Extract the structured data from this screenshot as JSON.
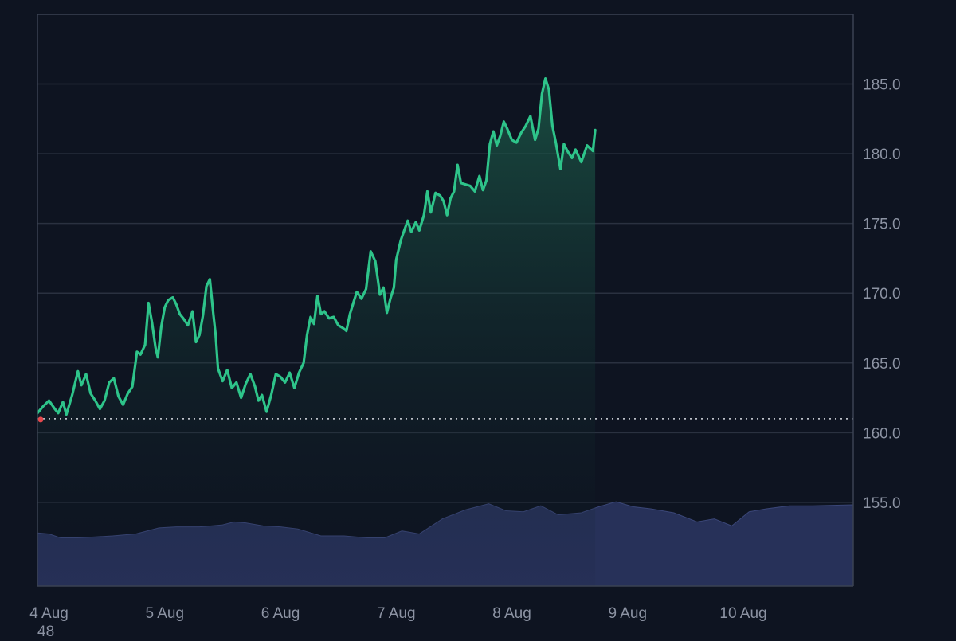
{
  "chart_data": {
    "type": "area",
    "title": "",
    "xlabel": "",
    "ylabel": "",
    "x_tick_labels": [
      "4 Aug",
      "5 Aug",
      "6 Aug",
      "7 Aug",
      "8 Aug",
      "9 Aug",
      "10 Aug"
    ],
    "y_tick_values": [
      155.0,
      160.0,
      165.0,
      170.0,
      175.0,
      180.0,
      185.0
    ],
    "y_tick_labels": [
      "155.0",
      "160.0",
      "165.0",
      "170.0",
      "175.0",
      "180.0",
      "185.0"
    ],
    "ylim": [
      149.0,
      190.0
    ],
    "x_range_days": [
      3.9,
      10.95
    ],
    "grid": true,
    "reference_line": 161.0,
    "bottom_left_label": "48",
    "series": [
      {
        "kind": "price",
        "color": "#2ec48a",
        "area_top_color": "#1f6b52",
        "area_bottom_color": "#0e1421",
        "points": [
          [
            3.9,
            161.4
          ],
          [
            3.95,
            161.9
          ],
          [
            4.0,
            162.3
          ],
          [
            4.05,
            161.7
          ],
          [
            4.08,
            161.4
          ],
          [
            4.12,
            162.2
          ],
          [
            4.15,
            161.3
          ],
          [
            4.2,
            162.7
          ],
          [
            4.25,
            164.4
          ],
          [
            4.28,
            163.4
          ],
          [
            4.32,
            164.2
          ],
          [
            4.36,
            162.8
          ],
          [
            4.4,
            162.3
          ],
          [
            4.44,
            161.7
          ],
          [
            4.48,
            162.3
          ],
          [
            4.52,
            163.6
          ],
          [
            4.56,
            163.9
          ],
          [
            4.6,
            162.6
          ],
          [
            4.64,
            162.0
          ],
          [
            4.68,
            162.8
          ],
          [
            4.72,
            163.3
          ],
          [
            4.76,
            165.8
          ],
          [
            4.79,
            165.6
          ],
          [
            4.83,
            166.3
          ],
          [
            4.86,
            169.3
          ],
          [
            4.89,
            167.9
          ],
          [
            4.92,
            166.1
          ],
          [
            4.94,
            165.4
          ],
          [
            4.97,
            167.6
          ],
          [
            5.0,
            169.0
          ],
          [
            5.03,
            169.5
          ],
          [
            5.07,
            169.7
          ],
          [
            5.1,
            169.2
          ],
          [
            5.13,
            168.5
          ],
          [
            5.16,
            168.2
          ],
          [
            5.2,
            167.7
          ],
          [
            5.24,
            168.7
          ],
          [
            5.27,
            166.5
          ],
          [
            5.3,
            167.0
          ],
          [
            5.33,
            168.4
          ],
          [
            5.36,
            170.5
          ],
          [
            5.39,
            171.0
          ],
          [
            5.42,
            168.5
          ],
          [
            5.44,
            167.0
          ],
          [
            5.46,
            164.6
          ],
          [
            5.5,
            163.7
          ],
          [
            5.54,
            164.5
          ],
          [
            5.58,
            163.2
          ],
          [
            5.62,
            163.6
          ],
          [
            5.66,
            162.5
          ],
          [
            5.7,
            163.5
          ],
          [
            5.74,
            164.2
          ],
          [
            5.78,
            163.3
          ],
          [
            5.81,
            162.3
          ],
          [
            5.84,
            162.7
          ],
          [
            5.88,
            161.5
          ],
          [
            5.92,
            162.7
          ],
          [
            5.96,
            164.2
          ],
          [
            6.0,
            164.0
          ],
          [
            6.04,
            163.6
          ],
          [
            6.08,
            164.3
          ],
          [
            6.12,
            163.2
          ],
          [
            6.16,
            164.3
          ],
          [
            6.2,
            165.0
          ],
          [
            6.23,
            167.0
          ],
          [
            6.26,
            168.3
          ],
          [
            6.29,
            167.8
          ],
          [
            6.32,
            169.8
          ],
          [
            6.35,
            168.5
          ],
          [
            6.38,
            168.7
          ],
          [
            6.42,
            168.2
          ],
          [
            6.46,
            168.3
          ],
          [
            6.5,
            167.7
          ],
          [
            6.54,
            167.5
          ],
          [
            6.57,
            167.3
          ],
          [
            6.6,
            168.5
          ],
          [
            6.63,
            169.3
          ],
          [
            6.66,
            170.1
          ],
          [
            6.7,
            169.6
          ],
          [
            6.74,
            170.3
          ],
          [
            6.78,
            173.0
          ],
          [
            6.82,
            172.3
          ],
          [
            6.86,
            169.9
          ],
          [
            6.89,
            170.4
          ],
          [
            6.92,
            168.6
          ],
          [
            6.95,
            169.6
          ],
          [
            6.98,
            170.4
          ],
          [
            7.0,
            172.4
          ],
          [
            7.04,
            173.8
          ],
          [
            7.07,
            174.5
          ],
          [
            7.1,
            175.2
          ],
          [
            7.13,
            174.4
          ],
          [
            7.17,
            175.1
          ],
          [
            7.2,
            174.5
          ],
          [
            7.24,
            175.6
          ],
          [
            7.27,
            177.3
          ],
          [
            7.3,
            175.8
          ],
          [
            7.34,
            177.2
          ],
          [
            7.38,
            177.0
          ],
          [
            7.41,
            176.6
          ],
          [
            7.44,
            175.6
          ],
          [
            7.47,
            176.8
          ],
          [
            7.5,
            177.3
          ],
          [
            7.53,
            179.2
          ],
          [
            7.56,
            177.9
          ],
          [
            7.6,
            177.8
          ],
          [
            7.64,
            177.7
          ],
          [
            7.68,
            177.3
          ],
          [
            7.72,
            178.4
          ],
          [
            7.75,
            177.4
          ],
          [
            7.78,
            178.1
          ],
          [
            7.81,
            180.7
          ],
          [
            7.84,
            181.6
          ],
          [
            7.87,
            180.6
          ],
          [
            7.9,
            181.3
          ],
          [
            7.93,
            182.3
          ],
          [
            7.96,
            181.8
          ],
          [
            8.0,
            181.0
          ],
          [
            8.04,
            180.8
          ],
          [
            8.08,
            181.5
          ],
          [
            8.12,
            182.0
          ],
          [
            8.16,
            182.7
          ],
          [
            8.2,
            181.0
          ],
          [
            8.23,
            181.8
          ],
          [
            8.26,
            184.3
          ],
          [
            8.29,
            185.4
          ],
          [
            8.32,
            184.6
          ],
          [
            8.35,
            182.0
          ],
          [
            8.38,
            180.8
          ],
          [
            8.42,
            178.9
          ],
          [
            8.45,
            180.7
          ],
          [
            8.48,
            180.2
          ],
          [
            8.52,
            179.7
          ],
          [
            8.55,
            180.3
          ],
          [
            8.6,
            179.4
          ],
          [
            8.65,
            180.6
          ],
          [
            8.7,
            180.2
          ],
          [
            8.72,
            181.7
          ]
        ]
      },
      {
        "kind": "volume_area",
        "color": "#273159",
        "display_scale": [
          0,
          100
        ],
        "points": [
          [
            3.9,
            53
          ],
          [
            4.0,
            52
          ],
          [
            4.1,
            48
          ],
          [
            4.25,
            48
          ],
          [
            4.4,
            49
          ],
          [
            4.55,
            50
          ],
          [
            4.75,
            52
          ],
          [
            4.95,
            58
          ],
          [
            5.1,
            59
          ],
          [
            5.3,
            59
          ],
          [
            5.5,
            61
          ],
          [
            5.6,
            64
          ],
          [
            5.7,
            63
          ],
          [
            5.85,
            60
          ],
          [
            6.0,
            59
          ],
          [
            6.15,
            57
          ],
          [
            6.35,
            50
          ],
          [
            6.55,
            50
          ],
          [
            6.75,
            48
          ],
          [
            6.9,
            48
          ],
          [
            7.05,
            55
          ],
          [
            7.2,
            52
          ],
          [
            7.4,
            67
          ],
          [
            7.6,
            76
          ],
          [
            7.8,
            82
          ],
          [
            7.95,
            75
          ],
          [
            8.1,
            74
          ],
          [
            8.25,
            80
          ],
          [
            8.4,
            71
          ],
          [
            8.6,
            73
          ],
          [
            8.75,
            79
          ],
          [
            8.9,
            84
          ],
          [
            9.05,
            79
          ],
          [
            9.2,
            77
          ],
          [
            9.4,
            73
          ],
          [
            9.6,
            64
          ],
          [
            9.75,
            67
          ],
          [
            9.9,
            60
          ],
          [
            10.05,
            74
          ],
          [
            10.2,
            77
          ],
          [
            10.4,
            80
          ],
          [
            10.6,
            80
          ],
          [
            10.95,
            81
          ]
        ]
      }
    ]
  }
}
